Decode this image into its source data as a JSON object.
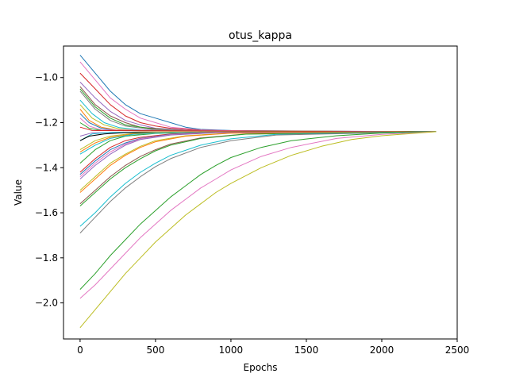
{
  "chart_data": {
    "type": "line",
    "title": "otus_kappa",
    "xlabel": "Epochs",
    "ylabel": "Value",
    "xlim": [
      -110,
      2500
    ],
    "ylim": [
      -2.16,
      -0.86
    ],
    "xticks": [
      0,
      500,
      1000,
      1500,
      2000,
      2500
    ],
    "yticks": [
      -2.0,
      -1.8,
      -1.6,
      -1.4,
      -1.2,
      -1.0
    ],
    "x_tick_labels": [
      "0",
      "500",
      "1000",
      "1500",
      "2000",
      "2500"
    ],
    "y_tick_labels": [
      "−2.0",
      "−1.8",
      "−1.6",
      "−1.4",
      "−1.2",
      "−1.0"
    ],
    "grid": false,
    "legend": "none",
    "series": [
      {
        "color": "#1f77b4",
        "values": [
          [
            0,
            -0.9
          ],
          [
            100,
            -0.98
          ],
          [
            200,
            -1.06
          ],
          [
            300,
            -1.12
          ],
          [
            400,
            -1.16
          ],
          [
            500,
            -1.18
          ],
          [
            600,
            -1.2
          ],
          [
            700,
            -1.22
          ],
          [
            800,
            -1.23
          ],
          [
            1000,
            -1.235
          ],
          [
            1400,
            -1.237
          ],
          [
            2360,
            -1.24
          ]
        ]
      },
      {
        "color": "#e377c2",
        "values": [
          [
            0,
            -0.93
          ],
          [
            100,
            -1.01
          ],
          [
            200,
            -1.09
          ],
          [
            300,
            -1.14
          ],
          [
            400,
            -1.18
          ],
          [
            500,
            -1.2
          ],
          [
            600,
            -1.22
          ],
          [
            800,
            -1.232
          ],
          [
            1000,
            -1.236
          ],
          [
            1400,
            -1.238
          ],
          [
            2360,
            -1.24
          ]
        ]
      },
      {
        "color": "#d62728",
        "values": [
          [
            0,
            -0.98
          ],
          [
            100,
            -1.05
          ],
          [
            200,
            -1.12
          ],
          [
            300,
            -1.17
          ],
          [
            400,
            -1.2
          ],
          [
            500,
            -1.215
          ],
          [
            600,
            -1.225
          ],
          [
            800,
            -1.233
          ],
          [
            1000,
            -1.237
          ],
          [
            2360,
            -1.24
          ]
        ]
      },
      {
        "color": "#9467bd",
        "values": [
          [
            0,
            -1.02
          ],
          [
            100,
            -1.09
          ],
          [
            200,
            -1.15
          ],
          [
            300,
            -1.19
          ],
          [
            400,
            -1.21
          ],
          [
            500,
            -1.225
          ],
          [
            700,
            -1.233
          ],
          [
            1000,
            -1.237
          ],
          [
            2360,
            -1.24
          ]
        ]
      },
      {
        "color": "#8c564b",
        "values": [
          [
            0,
            -1.04
          ],
          [
            100,
            -1.12
          ],
          [
            200,
            -1.17
          ],
          [
            300,
            -1.2
          ],
          [
            400,
            -1.22
          ],
          [
            600,
            -1.232
          ],
          [
            1000,
            -1.237
          ],
          [
            2360,
            -1.24
          ]
        ]
      },
      {
        "color": "#2ca02c",
        "values": [
          [
            0,
            -1.05
          ],
          [
            100,
            -1.13
          ],
          [
            200,
            -1.18
          ],
          [
            300,
            -1.21
          ],
          [
            500,
            -1.23
          ],
          [
            800,
            -1.236
          ],
          [
            2360,
            -1.24
          ]
        ]
      },
      {
        "color": "#7f7f7f",
        "values": [
          [
            0,
            -1.06
          ],
          [
            100,
            -1.14
          ],
          [
            200,
            -1.19
          ],
          [
            300,
            -1.215
          ],
          [
            500,
            -1.232
          ],
          [
            800,
            -1.237
          ],
          [
            2360,
            -1.24
          ]
        ]
      },
      {
        "color": "#17becf",
        "values": [
          [
            0,
            -1.1
          ],
          [
            80,
            -1.16
          ],
          [
            160,
            -1.2
          ],
          [
            260,
            -1.222
          ],
          [
            400,
            -1.232
          ],
          [
            700,
            -1.237
          ],
          [
            2360,
            -1.24
          ]
        ]
      },
      {
        "color": "#bcbd22",
        "values": [
          [
            0,
            -1.12
          ],
          [
            80,
            -1.18
          ],
          [
            160,
            -1.21
          ],
          [
            260,
            -1.228
          ],
          [
            400,
            -1.235
          ],
          [
            2360,
            -1.24
          ]
        ]
      },
      {
        "color": "#ff7f0e",
        "values": [
          [
            0,
            -1.14
          ],
          [
            60,
            -1.19
          ],
          [
            140,
            -1.22
          ],
          [
            240,
            -1.232
          ],
          [
            400,
            -1.237
          ],
          [
            2360,
            -1.24
          ]
        ]
      },
      {
        "color": "#1f77b4",
        "values": [
          [
            0,
            -1.16
          ],
          [
            60,
            -1.2
          ],
          [
            140,
            -1.225
          ],
          [
            240,
            -1.234
          ],
          [
            2360,
            -1.24
          ]
        ]
      },
      {
        "color": "#e377c2",
        "values": [
          [
            0,
            -1.18
          ],
          [
            60,
            -1.215
          ],
          [
            140,
            -1.232
          ],
          [
            2360,
            -1.24
          ]
        ]
      },
      {
        "color": "#2ca02c",
        "values": [
          [
            0,
            -1.2
          ],
          [
            60,
            -1.225
          ],
          [
            140,
            -1.235
          ],
          [
            2360,
            -1.24
          ]
        ]
      },
      {
        "color": "#d62728",
        "values": [
          [
            0,
            -1.22
          ],
          [
            80,
            -1.235
          ],
          [
            2360,
            -1.24
          ]
        ]
      },
      {
        "color": "#9467bd",
        "values": [
          [
            0,
            -1.26
          ],
          [
            80,
            -1.245
          ],
          [
            2360,
            -1.24
          ]
        ]
      },
      {
        "color": "#17becf",
        "values": [
          [
            0,
            -1.28
          ],
          [
            80,
            -1.25
          ],
          [
            200,
            -1.243
          ],
          [
            2360,
            -1.24
          ]
        ]
      },
      {
        "color": "#000000",
        "values": [
          [
            0,
            -1.28
          ],
          [
            60,
            -1.26
          ],
          [
            160,
            -1.25
          ],
          [
            300,
            -1.244
          ],
          [
            2360,
            -1.24
          ]
        ]
      },
      {
        "color": "#bcbd22",
        "values": [
          [
            0,
            -1.32
          ],
          [
            100,
            -1.28
          ],
          [
            200,
            -1.26
          ],
          [
            350,
            -1.248
          ],
          [
            600,
            -1.242
          ],
          [
            2360,
            -1.24
          ]
        ]
      },
      {
        "color": "#2ca02c",
        "values": [
          [
            0,
            -1.38
          ],
          [
            100,
            -1.32
          ],
          [
            200,
            -1.28
          ],
          [
            300,
            -1.26
          ],
          [
            500,
            -1.248
          ],
          [
            800,
            -1.242
          ],
          [
            2360,
            -1.24
          ]
        ]
      },
      {
        "color": "#ff7f0e",
        "values": [
          [
            0,
            -1.33
          ],
          [
            100,
            -1.29
          ],
          [
            200,
            -1.265
          ],
          [
            350,
            -1.25
          ],
          [
            600,
            -1.243
          ],
          [
            2360,
            -1.24
          ]
        ]
      },
      {
        "color": "#17becf",
        "values": [
          [
            0,
            -1.34
          ],
          [
            100,
            -1.3
          ],
          [
            200,
            -1.27
          ],
          [
            350,
            -1.252
          ],
          [
            600,
            -1.244
          ],
          [
            2360,
            -1.24
          ]
        ]
      },
      {
        "color": "#d62728",
        "values": [
          [
            0,
            -1.42
          ],
          [
            100,
            -1.36
          ],
          [
            200,
            -1.31
          ],
          [
            300,
            -1.28
          ],
          [
            400,
            -1.265
          ],
          [
            600,
            -1.25
          ],
          [
            900,
            -1.243
          ],
          [
            2360,
            -1.24
          ]
        ]
      },
      {
        "color": "#1f77b4",
        "values": [
          [
            0,
            -1.43
          ],
          [
            100,
            -1.37
          ],
          [
            200,
            -1.32
          ],
          [
            300,
            -1.29
          ],
          [
            400,
            -1.27
          ],
          [
            600,
            -1.252
          ],
          [
            900,
            -1.244
          ],
          [
            2360,
            -1.24
          ]
        ]
      },
      {
        "color": "#e377c2",
        "values": [
          [
            0,
            -1.44
          ],
          [
            100,
            -1.38
          ],
          [
            200,
            -1.33
          ],
          [
            300,
            -1.295
          ],
          [
            400,
            -1.272
          ],
          [
            600,
            -1.253
          ],
          [
            900,
            -1.244
          ],
          [
            2360,
            -1.24
          ]
        ]
      },
      {
        "color": "#9467bd",
        "values": [
          [
            0,
            -1.45
          ],
          [
            100,
            -1.39
          ],
          [
            200,
            -1.34
          ],
          [
            300,
            -1.3
          ],
          [
            400,
            -1.275
          ],
          [
            600,
            -1.255
          ],
          [
            900,
            -1.245
          ],
          [
            2360,
            -1.24
          ]
        ]
      },
      {
        "color": "#bcbd22",
        "values": [
          [
            0,
            -1.5
          ],
          [
            100,
            -1.44
          ],
          [
            200,
            -1.38
          ],
          [
            300,
            -1.34
          ],
          [
            400,
            -1.305
          ],
          [
            500,
            -1.28
          ],
          [
            700,
            -1.258
          ],
          [
            1000,
            -1.246
          ],
          [
            2360,
            -1.24
          ]
        ]
      },
      {
        "color": "#ff7f0e",
        "values": [
          [
            0,
            -1.51
          ],
          [
            100,
            -1.45
          ],
          [
            200,
            -1.39
          ],
          [
            300,
            -1.345
          ],
          [
            400,
            -1.31
          ],
          [
            500,
            -1.285
          ],
          [
            700,
            -1.26
          ],
          [
            1000,
            -1.247
          ],
          [
            2360,
            -1.24
          ]
        ]
      },
      {
        "color": "#8c564b",
        "values": [
          [
            0,
            -1.56
          ],
          [
            100,
            -1.5
          ],
          [
            200,
            -1.44
          ],
          [
            300,
            -1.39
          ],
          [
            400,
            -1.35
          ],
          [
            500,
            -1.32
          ],
          [
            600,
            -1.295
          ],
          [
            800,
            -1.268
          ],
          [
            1100,
            -1.25
          ],
          [
            2360,
            -1.24
          ]
        ]
      },
      {
        "color": "#2ca02c",
        "values": [
          [
            0,
            -1.57
          ],
          [
            100,
            -1.51
          ],
          [
            200,
            -1.45
          ],
          [
            300,
            -1.4
          ],
          [
            400,
            -1.36
          ],
          [
            500,
            -1.325
          ],
          [
            600,
            -1.3
          ],
          [
            800,
            -1.27
          ],
          [
            1100,
            -1.251
          ],
          [
            2360,
            -1.24
          ]
        ]
      },
      {
        "color": "#17becf",
        "values": [
          [
            0,
            -1.66
          ],
          [
            100,
            -1.6
          ],
          [
            200,
            -1.53
          ],
          [
            300,
            -1.47
          ],
          [
            400,
            -1.42
          ],
          [
            500,
            -1.38
          ],
          [
            600,
            -1.345
          ],
          [
            800,
            -1.3
          ],
          [
            1000,
            -1.272
          ],
          [
            1300,
            -1.252
          ],
          [
            2360,
            -1.24
          ]
        ]
      },
      {
        "color": "#7f7f7f",
        "values": [
          [
            0,
            -1.69
          ],
          [
            100,
            -1.62
          ],
          [
            200,
            -1.55
          ],
          [
            300,
            -1.49
          ],
          [
            400,
            -1.44
          ],
          [
            500,
            -1.395
          ],
          [
            600,
            -1.36
          ],
          [
            800,
            -1.31
          ],
          [
            1000,
            -1.28
          ],
          [
            1300,
            -1.255
          ],
          [
            2360,
            -1.24
          ]
        ]
      },
      {
        "color": "#2ca02c",
        "values": [
          [
            0,
            -1.94
          ],
          [
            100,
            -1.87
          ],
          [
            200,
            -1.79
          ],
          [
            300,
            -1.72
          ],
          [
            400,
            -1.65
          ],
          [
            500,
            -1.59
          ],
          [
            600,
            -1.53
          ],
          [
            700,
            -1.48
          ],
          [
            800,
            -1.43
          ],
          [
            900,
            -1.39
          ],
          [
            1000,
            -1.355
          ],
          [
            1200,
            -1.31
          ],
          [
            1400,
            -1.28
          ],
          [
            1700,
            -1.258
          ],
          [
            2000,
            -1.246
          ],
          [
            2360,
            -1.24
          ]
        ]
      },
      {
        "color": "#e377c2",
        "values": [
          [
            0,
            -1.98
          ],
          [
            100,
            -1.92
          ],
          [
            200,
            -1.85
          ],
          [
            300,
            -1.78
          ],
          [
            400,
            -1.71
          ],
          [
            500,
            -1.65
          ],
          [
            600,
            -1.59
          ],
          [
            700,
            -1.54
          ],
          [
            800,
            -1.49
          ],
          [
            900,
            -1.45
          ],
          [
            1000,
            -1.41
          ],
          [
            1200,
            -1.35
          ],
          [
            1400,
            -1.31
          ],
          [
            1700,
            -1.27
          ],
          [
            2000,
            -1.252
          ],
          [
            2360,
            -1.24
          ]
        ]
      },
      {
        "color": "#bcbd22",
        "values": [
          [
            0,
            -2.11
          ],
          [
            100,
            -2.03
          ],
          [
            200,
            -1.95
          ],
          [
            300,
            -1.87
          ],
          [
            400,
            -1.8
          ],
          [
            500,
            -1.73
          ],
          [
            600,
            -1.67
          ],
          [
            700,
            -1.61
          ],
          [
            800,
            -1.56
          ],
          [
            900,
            -1.51
          ],
          [
            1000,
            -1.47
          ],
          [
            1200,
            -1.4
          ],
          [
            1400,
            -1.345
          ],
          [
            1600,
            -1.305
          ],
          [
            1800,
            -1.275
          ],
          [
            2000,
            -1.258
          ],
          [
            2360,
            -1.24
          ]
        ]
      }
    ]
  }
}
